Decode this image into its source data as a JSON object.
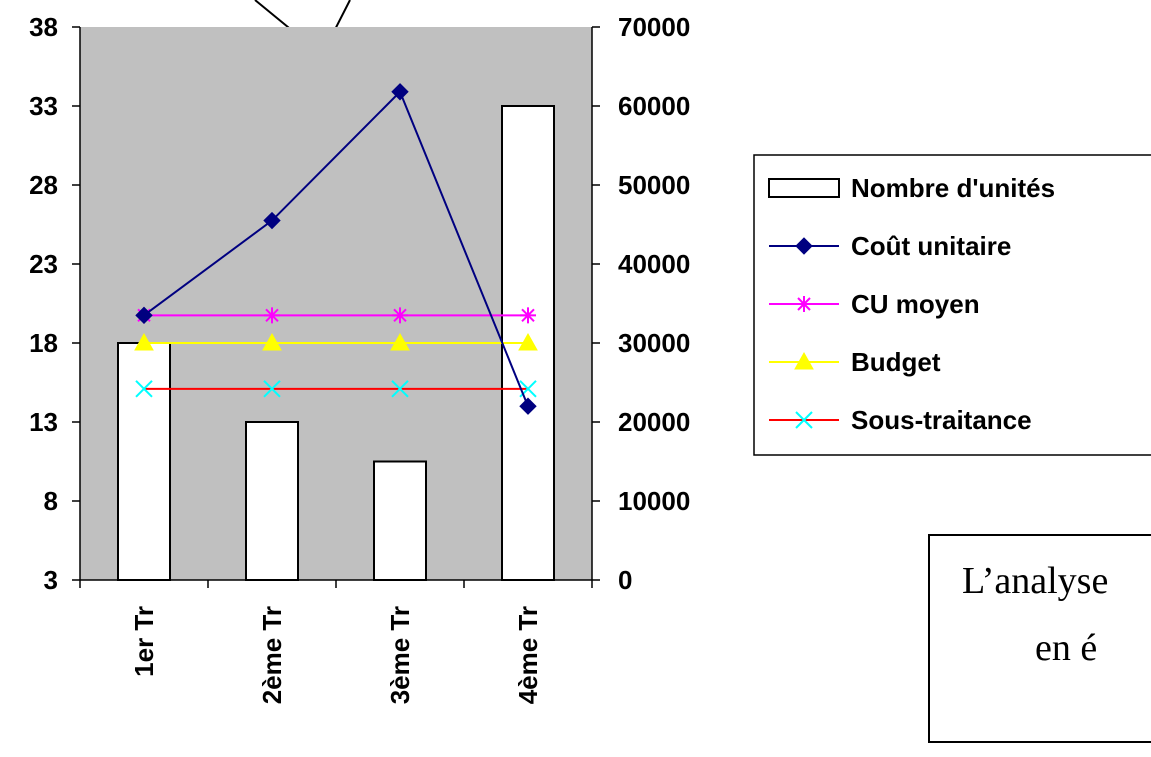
{
  "chart_data": {
    "type": "bar",
    "categories": [
      "1er Tr",
      "2ème Tr",
      "3ème Tr",
      "4ème Tr"
    ],
    "bar_series": {
      "name": "Nombre d'unités",
      "axis": "left",
      "values": [
        18,
        13,
        10.5,
        33
      ]
    },
    "line_series": [
      {
        "name": "Coût unitaire",
        "axis": "right",
        "values": [
          33500,
          45500,
          61800,
          22000
        ],
        "color": "#000080",
        "marker": "diamond"
      },
      {
        "name": "CU moyen",
        "axis": "right",
        "values": [
          33500,
          33500,
          33500,
          33500
        ],
        "color": "#ff00ff",
        "marker": "asterisk"
      },
      {
        "name": "Budget",
        "axis": "right",
        "values": [
          30000,
          30000,
          30000,
          30000
        ],
        "color": "#ffff00",
        "marker": "triangle"
      },
      {
        "name": "Sous-traitance",
        "axis": "right",
        "values": [
          24200,
          24200,
          24200,
          24200
        ],
        "color": "#ff0000",
        "marker": "x",
        "marker_color": "#00ffff"
      }
    ],
    "left_axis": {
      "ylim": [
        3,
        38
      ],
      "ticks": [
        "3",
        "8",
        "13",
        "18",
        "23",
        "28",
        "33",
        "38"
      ]
    },
    "right_axis": {
      "ylim": [
        0,
        70000
      ],
      "ticks": [
        "0",
        "10000",
        "20000",
        "30000",
        "40000",
        "50000",
        "60000",
        "70000"
      ]
    },
    "plot_background": "#c0c0c0",
    "legend_position": "right"
  },
  "textbox": {
    "line1": "L’analyse",
    "line2": "en é"
  }
}
